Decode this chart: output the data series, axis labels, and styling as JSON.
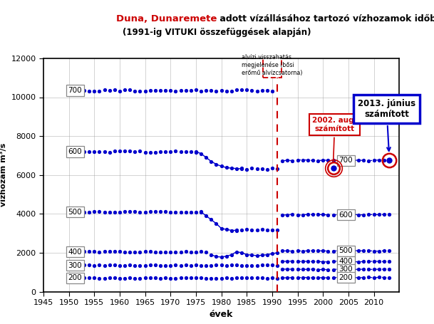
{
  "title_part1": "Duna, Dunaremete",
  "title_part2": " adott vízállásához tartozó vízhozamok időbeni alakulása",
  "subtitle": "(1991-ig VITUKI összefüggések alapján)",
  "xlabel": "évek",
  "ylabel": "vízhozam m³/s",
  "xlim": [
    1945,
    2015
  ],
  "ylim": [
    0,
    12000
  ],
  "yticks": [
    0,
    2000,
    4000,
    6000,
    8000,
    10000,
    12000
  ],
  "xticks": [
    1945,
    1950,
    1955,
    1960,
    1965,
    1970,
    1975,
    1980,
    1985,
    1990,
    1995,
    2000,
    2005,
    2010
  ],
  "annotation_text": "alvízi visszahatás\nmegjelenése (bősi\nerőmű alvízcsatorna)",
  "dot_color": "#0000cc",
  "red_color": "#cc0000",
  "blue_box_color": "#0000cc",
  "bg_color": "#ffffff",
  "grid_color": "#999999",
  "pre_700_y": 10350,
  "pre_600_y": 7200,
  "pre_500_y": 4100,
  "pre_400_y": 2050,
  "pre_300_y": 1350,
  "pre_200_y": 700,
  "post_700_y": 6750,
  "post_600_y": 3950,
  "post_500_y": 2100,
  "post_400_y": 1550,
  "post_300_y": 1150,
  "post_200_y": 720,
  "pt_2002_x": 2002,
  "pt_2002_y": 6350,
  "pt_2013_x": 2013,
  "pt_2013_y": 6750
}
